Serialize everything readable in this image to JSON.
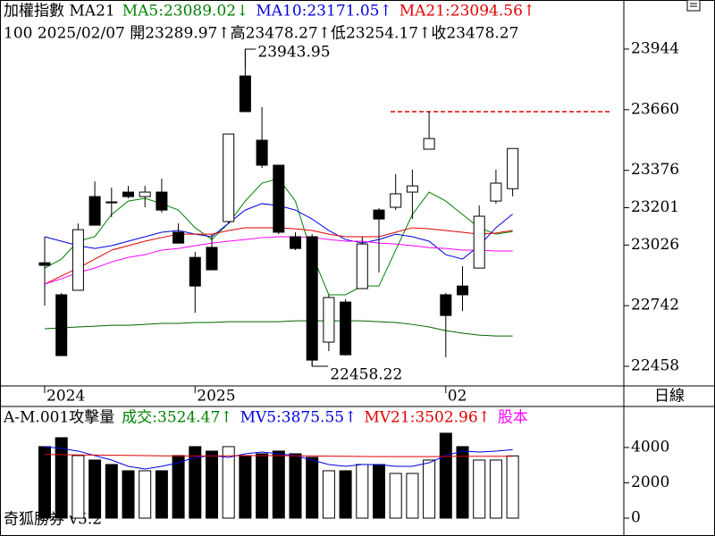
{
  "chart_data": {
    "type": "candlestick",
    "title": "加權指數 MA21",
    "legend": [
      {
        "text": "MA5:23089.02↓",
        "color": "#008000"
      },
      {
        "text": "MA10:23171.05↑",
        "color": "#0000e0"
      },
      {
        "text": "MA21:23094.56↑",
        "color": "#e00000"
      }
    ],
    "info": "100 2025/02/07 開23289.97↑高23478.27↑低23254.17↑收23478.27",
    "period": "日線",
    "footer": "奇狐勝券 v5.2",
    "categories": [
      "2024",
      null,
      null,
      null,
      null,
      null,
      null,
      null,
      null,
      "2025",
      null,
      null,
      null,
      null,
      null,
      null,
      null,
      null,
      null,
      null,
      null,
      null,
      null,
      null,
      "02",
      null,
      null,
      null,
      null
    ],
    "open": [
      22943,
      22793,
      22814,
      23253,
      23228,
      23274,
      23253,
      23274,
      23086,
      22968,
      23015,
      23136,
      23818,
      23517,
      23400,
      23065,
      23065,
      22571,
      22759,
      22822,
      23190,
      23203,
      23274,
      23475,
      22793,
      22834,
      22918,
      23232,
      23289.97
    ],
    "high": [
      23065,
      22801,
      23127,
      23324,
      23295,
      23303,
      23303,
      23337,
      23128,
      22994,
      23077,
      23546,
      23943.95,
      23672,
      23400,
      23086,
      23077,
      22793,
      22772,
      23065,
      23199,
      23358,
      23379,
      23651,
      22801,
      22927,
      23211,
      23379,
      23478.27
    ],
    "low": [
      22742,
      22508,
      22814,
      23119,
      23157,
      23245,
      23203,
      23178,
      23035,
      22709,
      22910,
      23128,
      23651,
      23387,
      23077,
      23002,
      22458.22,
      22529,
      22508,
      22822,
      22897,
      23190,
      23148,
      23475,
      22500,
      22717,
      22918,
      23220,
      23254.17
    ],
    "close": [
      22931,
      22508,
      23098,
      23119,
      23224,
      23253,
      23274,
      23190,
      23035,
      22834,
      22910,
      23546,
      23651,
      23400,
      23086,
      23010,
      22487,
      22780,
      22512,
      23031,
      23148,
      23266,
      23303,
      23525,
      22696,
      22793,
      23161,
      23316,
      23478.27
    ],
    "up_color": "#ffffff",
    "down_color": "#000000",
    "lines": [
      {
        "color": "#008000",
        "values": [
          22918,
          22960,
          23044,
          23065,
          23169,
          23232,
          23245,
          23220,
          23190,
          23107,
          23052,
          23128,
          23232,
          23316,
          23337,
          23232,
          22981,
          22793,
          22793,
          22834,
          22834,
          23002,
          23169,
          23274,
          23232,
          23169,
          23107,
          23077,
          23089.02
        ]
      },
      {
        "color": "#0000e0",
        "values": [
          23065,
          23044,
          23023,
          23010,
          23023,
          23044,
          23065,
          23086,
          23094,
          23077,
          23065,
          23128,
          23190,
          23220,
          23211,
          23190,
          23148,
          23094,
          23052,
          23035,
          23052,
          23077,
          23065,
          23044,
          22981,
          22960,
          23023,
          23107,
          23171.05
        ]
      },
      {
        "color": "#e00000",
        "values": [
          22843,
          22881,
          22918,
          22960,
          23002,
          23023,
          23044,
          23061,
          23077,
          23077,
          23077,
          23094,
          23107,
          23107,
          23107,
          23102,
          23094,
          23077,
          23065,
          23065,
          23065,
          23086,
          23107,
          23102,
          23094,
          23086,
          23077,
          23082,
          23094.56
        ]
      },
      {
        "color": "#ff00ff",
        "values": [
          22843,
          22868,
          22897,
          22918,
          22947,
          22968,
          22981,
          23002,
          23010,
          23023,
          23035,
          23044,
          23052,
          23061,
          23065,
          23065,
          23061,
          23052,
          23044,
          23044,
          23035,
          23031,
          23023,
          23014,
          23010,
          23002,
          23002,
          22998,
          22998
        ]
      },
      {
        "color": "#006400",
        "values": [
          22634,
          22638,
          22642,
          22646,
          22650,
          22650,
          22654,
          22659,
          22659,
          22663,
          22663,
          22667,
          22667,
          22667,
          22667,
          22671,
          22671,
          22671,
          22671,
          22671,
          22667,
          22663,
          22654,
          22642,
          22625,
          22613,
          22604,
          22600,
          22600
        ]
      }
    ],
    "hline": {
      "value": 23651,
      "color": "#e00000"
    },
    "ylim": [
      22366,
      24174
    ],
    "yticks": [
      23944,
      23660,
      23376,
      23201,
      23026,
      22742,
      22458
    ],
    "volume": {
      "title": "A-M.001攻擊量",
      "legend": [
        {
          "text": "成交:3524.47↑",
          "color": "#008000"
        },
        {
          "text": "MV5:3875.55↑",
          "color": "#0000e0"
        },
        {
          "text": "MV21:3502.96↑",
          "color": "#e00000"
        },
        {
          "text": "股本",
          "color": "#ff00ff"
        }
      ],
      "values": [
        4048,
        4554,
        3542,
        3289,
        3036,
        2682,
        2682,
        2682,
        3542,
        4048,
        3795,
        4048,
        3542,
        3643,
        3795,
        3643,
        3441,
        2682,
        2682,
        3036,
        3036,
        2530,
        2530,
        3289,
        4807,
        4048,
        3289,
        3289,
        3524.47
      ],
      "lines": [
        {
          "color": "#0000e0",
          "values": [
            4048,
            3947,
            3795,
            3542,
            3289,
            2935,
            2783,
            2935,
            3137,
            3441,
            3542,
            3441,
            3643,
            3744,
            3643,
            3542,
            3289,
            3036,
            2935,
            3036,
            3036,
            2935,
            2935,
            3137,
            3542,
            3795,
            3744,
            3795,
            3875.55
          ]
        },
        {
          "color": "#e00000",
          "values": [
            3600,
            3590,
            3580,
            3570,
            3560,
            3550,
            3540,
            3530,
            3520,
            3520,
            3520,
            3530,
            3540,
            3540,
            3540,
            3530,
            3520,
            3510,
            3500,
            3490,
            3480,
            3480,
            3480,
            3480,
            3490,
            3500,
            3500,
            3500,
            3502.96
          ]
        }
      ],
      "ylim": [
        0,
        6220
      ],
      "yticks": [
        0,
        2000,
        4000
      ]
    }
  }
}
